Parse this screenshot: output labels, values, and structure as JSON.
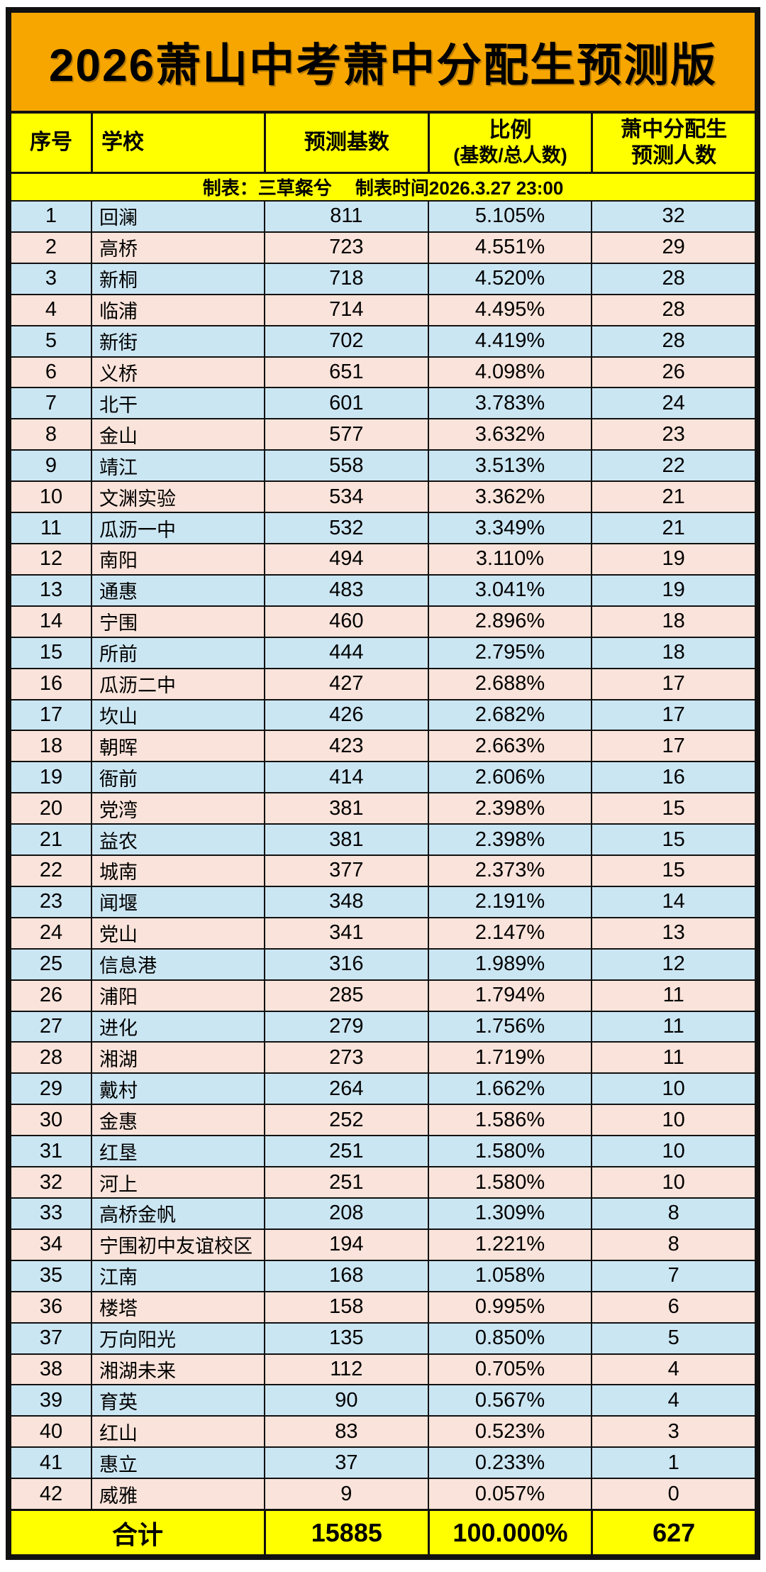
{
  "page": {
    "title": "2026萧山中考萧中分配生预测版"
  },
  "meta": {
    "note": "制表：三草粲兮　 制表时间2026.3.27 23:00"
  },
  "table": {
    "headers": {
      "no": "序号",
      "school": "学校",
      "base": "预测基数",
      "ratio_line1": "比例",
      "ratio_line2": "(基数/总人数)",
      "pred_line1": "萧中分配生",
      "pred_line2": "预测人数"
    },
    "rows": [
      {
        "no": "1",
        "school": "回澜",
        "base": "811",
        "ratio": "5.105%",
        "pred": "32"
      },
      {
        "no": "2",
        "school": "高桥",
        "base": "723",
        "ratio": "4.551%",
        "pred": "29"
      },
      {
        "no": "3",
        "school": "新桐",
        "base": "718",
        "ratio": "4.520%",
        "pred": "28"
      },
      {
        "no": "4",
        "school": "临浦",
        "base": "714",
        "ratio": "4.495%",
        "pred": "28"
      },
      {
        "no": "5",
        "school": "新街",
        "base": "702",
        "ratio": "4.419%",
        "pred": "28"
      },
      {
        "no": "6",
        "school": "义桥",
        "base": "651",
        "ratio": "4.098%",
        "pred": "26"
      },
      {
        "no": "7",
        "school": "北干",
        "base": "601",
        "ratio": "3.783%",
        "pred": "24"
      },
      {
        "no": "8",
        "school": "金山",
        "base": "577",
        "ratio": "3.632%",
        "pred": "23"
      },
      {
        "no": "9",
        "school": "靖江",
        "base": "558",
        "ratio": "3.513%",
        "pred": "22"
      },
      {
        "no": "10",
        "school": "文渊实验",
        "base": "534",
        "ratio": "3.362%",
        "pred": "21"
      },
      {
        "no": "11",
        "school": "瓜沥一中",
        "base": "532",
        "ratio": "3.349%",
        "pred": "21"
      },
      {
        "no": "12",
        "school": "南阳",
        "base": "494",
        "ratio": "3.110%",
        "pred": "19"
      },
      {
        "no": "13",
        "school": "通惠",
        "base": "483",
        "ratio": "3.041%",
        "pred": "19"
      },
      {
        "no": "14",
        "school": "宁围",
        "base": "460",
        "ratio": "2.896%",
        "pred": "18"
      },
      {
        "no": "15",
        "school": "所前",
        "base": "444",
        "ratio": "2.795%",
        "pred": "18"
      },
      {
        "no": "16",
        "school": "瓜沥二中",
        "base": "427",
        "ratio": "2.688%",
        "pred": "17"
      },
      {
        "no": "17",
        "school": "坎山",
        "base": "426",
        "ratio": "2.682%",
        "pred": "17"
      },
      {
        "no": "18",
        "school": "朝晖",
        "base": "423",
        "ratio": "2.663%",
        "pred": "17"
      },
      {
        "no": "19",
        "school": "衙前",
        "base": "414",
        "ratio": "2.606%",
        "pred": "16"
      },
      {
        "no": "20",
        "school": "党湾",
        "base": "381",
        "ratio": "2.398%",
        "pred": "15"
      },
      {
        "no": "21",
        "school": "益农",
        "base": "381",
        "ratio": "2.398%",
        "pred": "15"
      },
      {
        "no": "22",
        "school": "城南",
        "base": "377",
        "ratio": "2.373%",
        "pred": "15"
      },
      {
        "no": "23",
        "school": "闻堰",
        "base": "348",
        "ratio": "2.191%",
        "pred": "14"
      },
      {
        "no": "24",
        "school": "党山",
        "base": "341",
        "ratio": "2.147%",
        "pred": "13"
      },
      {
        "no": "25",
        "school": "信息港",
        "base": "316",
        "ratio": "1.989%",
        "pred": "12"
      },
      {
        "no": "26",
        "school": "浦阳",
        "base": "285",
        "ratio": "1.794%",
        "pred": "11"
      },
      {
        "no": "27",
        "school": "进化",
        "base": "279",
        "ratio": "1.756%",
        "pred": "11"
      },
      {
        "no": "28",
        "school": "湘湖",
        "base": "273",
        "ratio": "1.719%",
        "pred": "11"
      },
      {
        "no": "29",
        "school": "戴村",
        "base": "264",
        "ratio": "1.662%",
        "pred": "10"
      },
      {
        "no": "30",
        "school": "金惠",
        "base": "252",
        "ratio": "1.586%",
        "pred": "10"
      },
      {
        "no": "31",
        "school": "红垦",
        "base": "251",
        "ratio": "1.580%",
        "pred": "10"
      },
      {
        "no": "32",
        "school": "河上",
        "base": "251",
        "ratio": "1.580%",
        "pred": "10"
      },
      {
        "no": "33",
        "school": "高桥金帆",
        "base": "208",
        "ratio": "1.309%",
        "pred": "8"
      },
      {
        "no": "34",
        "school": "宁围初中友谊校区",
        "base": "194",
        "ratio": "1.221%",
        "pred": "8"
      },
      {
        "no": "35",
        "school": "江南",
        "base": "168",
        "ratio": "1.058%",
        "pred": "7"
      },
      {
        "no": "36",
        "school": "楼塔",
        "base": "158",
        "ratio": "0.995%",
        "pred": "6"
      },
      {
        "no": "37",
        "school": "万向阳光",
        "base": "135",
        "ratio": "0.850%",
        "pred": "5"
      },
      {
        "no": "38",
        "school": "湘湖未来",
        "base": "112",
        "ratio": "0.705%",
        "pred": "4"
      },
      {
        "no": "39",
        "school": "育英",
        "base": "90",
        "ratio": "0.567%",
        "pred": "4"
      },
      {
        "no": "40",
        "school": "红山",
        "base": "83",
        "ratio": "0.523%",
        "pred": "3"
      },
      {
        "no": "41",
        "school": "惠立",
        "base": "37",
        "ratio": "0.233%",
        "pred": "1"
      },
      {
        "no": "42",
        "school": "威雅",
        "base": "9",
        "ratio": "0.057%",
        "pred": "0"
      }
    ],
    "total": {
      "label": "合计",
      "base": "15885",
      "ratio": "100.000%",
      "pred": "627"
    }
  },
  "colors": {
    "title_bg": "#F7A600",
    "header_bg": "#FFFF00",
    "row_blue": "#CBE6F3",
    "row_pink": "#FAE3DA",
    "border": "#111111",
    "text": "#000000"
  }
}
